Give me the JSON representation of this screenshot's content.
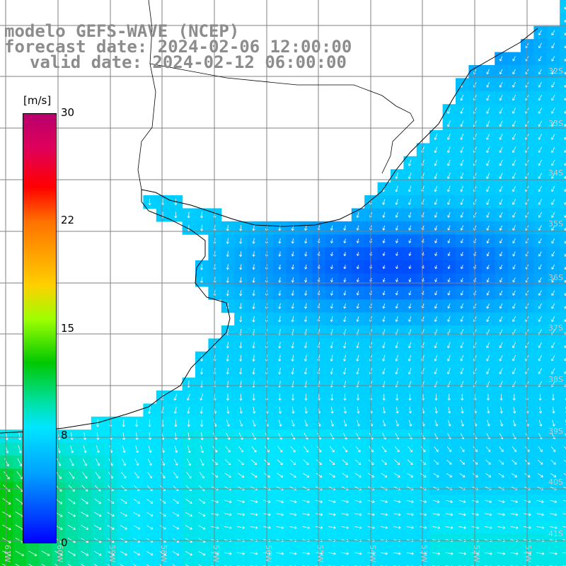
{
  "title": {
    "line1": "modelo GEFS-WAVE (NCEP)",
    "line2": "forecast date: 2024-02-06 12:00:00",
    "line3": "valid date: 2024-02-12 06:00:00"
  },
  "colorbar": {
    "unit": "[m/s]",
    "ticks": [
      "30",
      "22",
      "15",
      "8",
      "0"
    ],
    "colors": [
      "#b8006e",
      "#ff0000",
      "#ffd000",
      "#00c800",
      "#00e6ff",
      "#0040ff",
      "#0000ff"
    ]
  },
  "lat_labels": [
    "32S",
    "33S",
    "34S",
    "35S",
    "36S",
    "37S",
    "38S",
    "39S",
    "40S",
    "41S"
  ],
  "lon_labels": [
    "61W",
    "60W",
    "59W",
    "58W",
    "57W",
    "56W",
    "55W",
    "54W",
    "53W",
    "52W",
    "51W"
  ],
  "land_color": "#ffffff",
  "grid_color": "#808080"
}
